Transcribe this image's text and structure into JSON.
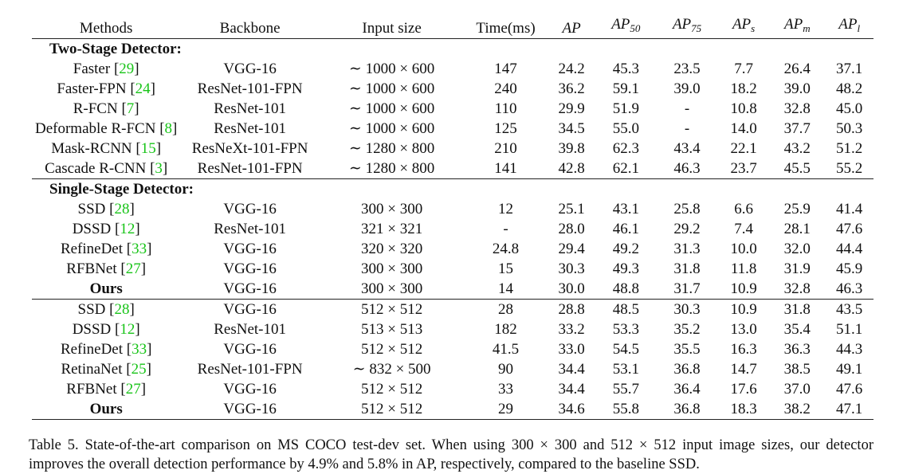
{
  "table": {
    "headers": {
      "methods": "Methods",
      "backbone": "Backbone",
      "input_size": "Input size",
      "time": "Time(ms)",
      "ap": "AP",
      "ap_prefix": "AP",
      "ap50_sub": "50",
      "ap75_sub": "75",
      "aps_sub": "s",
      "apm_sub": "m",
      "apl_sub": "l"
    },
    "sections": [
      {
        "label": "Two-Stage Detector:",
        "rows": [
          {
            "method": "Faster",
            "ref": "29",
            "backbone": "VGG-16",
            "input": "∼ 1000 × 600",
            "time": "147",
            "ap": "24.2",
            "ap50": "45.3",
            "ap75": "23.5",
            "aps": "7.7",
            "apm": "26.4",
            "apl": "37.1"
          },
          {
            "method": "Faster-FPN",
            "ref": "24",
            "backbone": "ResNet-101-FPN",
            "input": "∼ 1000 × 600",
            "time": "240",
            "ap": "36.2",
            "ap50": "59.1",
            "ap75": "39.0",
            "aps": "18.2",
            "apm": "39.0",
            "apl": "48.2"
          },
          {
            "method": "R-FCN",
            "ref": "7",
            "backbone": "ResNet-101",
            "input": "∼ 1000 × 600",
            "time": "110",
            "ap": "29.9",
            "ap50": "51.9",
            "ap75": "-",
            "aps": "10.8",
            "apm": "32.8",
            "apl": "45.0"
          },
          {
            "method": "Deformable R-FCN",
            "ref": "8",
            "backbone": "ResNet-101",
            "input": "∼ 1000 × 600",
            "time": "125",
            "ap": "34.5",
            "ap50": "55.0",
            "ap75": "-",
            "aps": "14.0",
            "apm": "37.7",
            "apl": "50.3"
          },
          {
            "method": "Mask-RCNN",
            "ref": "15",
            "backbone": "ResNeXt-101-FPN",
            "input": "∼ 1280 × 800",
            "time": "210",
            "ap": "39.8",
            "ap50": "62.3",
            "ap75": "43.4",
            "aps": "22.1",
            "apm": "43.2",
            "apl": "51.2"
          },
          {
            "method": "Cascade R-CNN",
            "ref": "3",
            "backbone": "ResNet-101-FPN",
            "input": "∼ 1280 × 800",
            "time": "141",
            "ap": "42.8",
            "ap50": "62.1",
            "ap75": "46.3",
            "aps": "23.7",
            "apm": "45.5",
            "apl": "55.2"
          }
        ]
      },
      {
        "label": "Single-Stage Detector:",
        "rows": [
          {
            "method": "SSD",
            "ref": "28",
            "backbone": "VGG-16",
            "input": "300 × 300",
            "time": "12",
            "ap": "25.1",
            "ap50": "43.1",
            "ap75": "25.8",
            "aps": "6.6",
            "apm": "25.9",
            "apl": "41.4"
          },
          {
            "method": "DSSD",
            "ref": "12",
            "backbone": "ResNet-101",
            "input": "321 × 321",
            "time": "-",
            "ap": "28.0",
            "ap50": "46.1",
            "ap75": "29.2",
            "aps": "7.4",
            "apm": "28.1",
            "apl": "47.6"
          },
          {
            "method": "RefineDet",
            "ref": "33",
            "backbone": "VGG-16",
            "input": "320 × 320",
            "time": "24.8",
            "ap": "29.4",
            "ap50": "49.2",
            "ap75": "31.3",
            "aps": "10.0",
            "apm": "32.0",
            "apl": "44.4"
          },
          {
            "method": "RFBNet",
            "ref": "27",
            "backbone": "VGG-16",
            "input": "300 × 300",
            "time": "15",
            "ap": "30.3",
            "ap50": "49.3",
            "ap75": "31.8",
            "aps": "11.8",
            "apm": "31.9",
            "apl": "45.9"
          },
          {
            "method": "Ours",
            "ref": "",
            "bold_method": true,
            "backbone": "VGG-16",
            "input": "300 × 300",
            "time": "14",
            "ap": "30.0",
            "ap50": "48.8",
            "ap75": "31.7",
            "aps": "10.9",
            "apm": "32.8",
            "apl": "46.3"
          }
        ]
      },
      {
        "label": "",
        "rows": [
          {
            "method": "SSD",
            "ref": "28",
            "backbone": "VGG-16",
            "input": "512 × 512",
            "time": "28",
            "ap": "28.8",
            "ap50": "48.5",
            "ap75": "30.3",
            "aps": "10.9",
            "apm": "31.8",
            "apl": "43.5"
          },
          {
            "method": "DSSD",
            "ref": "12",
            "backbone": "ResNet-101",
            "input": "513 × 513",
            "time": "182",
            "ap": "33.2",
            "ap50": "53.3",
            "ap75": "35.2",
            "aps": "13.0",
            "apm": "35.4",
            "apl": "51.1",
            "bold": [
              "apl"
            ]
          },
          {
            "method": "RefineDet",
            "ref": "33",
            "backbone": "VGG-16",
            "input": "512 × 512",
            "time": "41.5",
            "ap": "33.0",
            "ap50": "54.5",
            "ap75": "35.5",
            "aps": "16.3",
            "apm": "36.3",
            "apl": "44.3"
          },
          {
            "method": "RetinaNet",
            "ref": "25",
            "backbone": "ResNet-101-FPN",
            "input": "∼ 832 × 500",
            "time": "90",
            "ap": "34.4",
            "ap50": "53.1",
            "ap75": "36.8",
            "aps": "14.7",
            "apm": "38.5",
            "apl": "49.1",
            "bold": [
              "apm"
            ]
          },
          {
            "method": "RFBNet",
            "ref": "27",
            "backbone": "VGG-16",
            "input": "512 × 512",
            "time": "33",
            "ap": "34.4",
            "ap50": "55.7",
            "ap75": "36.4",
            "aps": "17.6",
            "apm": "37.0",
            "apl": "47.6"
          },
          {
            "method": "Ours",
            "ref": "",
            "bold_method": true,
            "backbone": "VGG-16",
            "input": "512 × 512",
            "time": "29",
            "ap": "34.6",
            "ap50": "55.8",
            "ap75": "36.8",
            "aps": "18.3",
            "apm": "38.2",
            "apl": "47.1",
            "bold": [
              "ap",
              "ap50",
              "ap75",
              "aps"
            ]
          }
        ]
      }
    ]
  },
  "caption": "Table 5. State-of-the-art comparison on MS COCO test-dev set. When using 300 × 300 and 512 × 512 input image sizes, our detector improves the overall detection performance by 4.9% and 5.8% in AP, respectively, compared to the baseline SSD.",
  "colors": {
    "reference_link": "#18c418",
    "text": "#111111",
    "rule": "#222222"
  }
}
